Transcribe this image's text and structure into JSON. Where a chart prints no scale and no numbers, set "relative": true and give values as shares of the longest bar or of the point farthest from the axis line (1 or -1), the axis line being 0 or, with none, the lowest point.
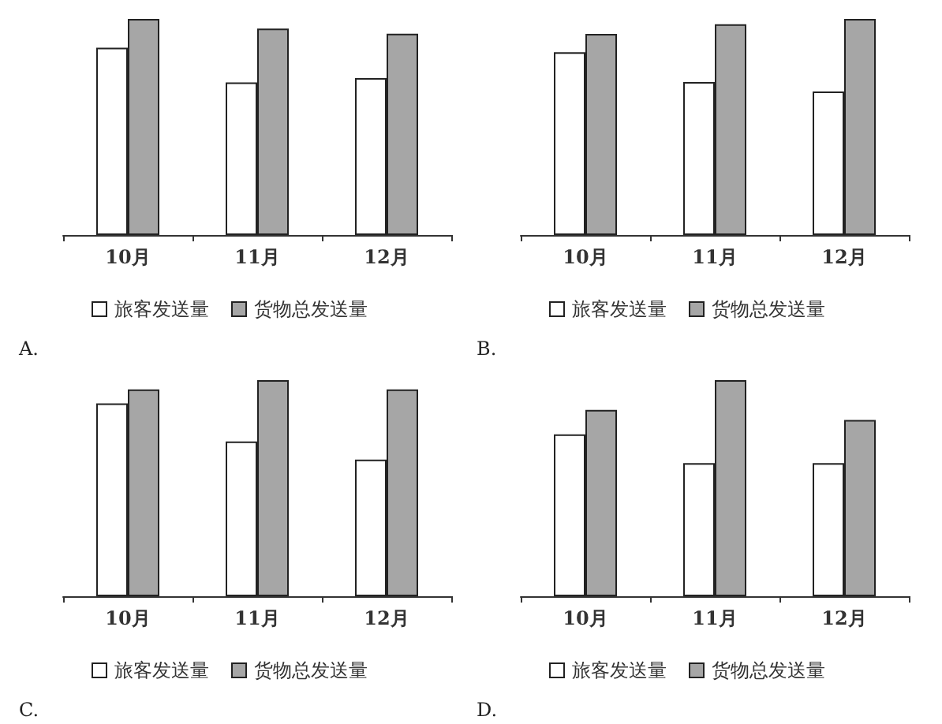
{
  "chart_data": [
    {
      "type": "bar",
      "relative": true,
      "categories": [
        "10月",
        "11月",
        "12月"
      ],
      "legend": "bottom",
      "annotations": [
        "A."
      ],
      "series": [
        {
          "name": "旅客发送量",
          "color": "#ffffff",
          "values": [
            0.867,
            0.706,
            0.726
          ]
        },
        {
          "name": "货物总发送量",
          "color": "#a6a6a6",
          "values": [
            1,
            0.955,
            0.932
          ]
        }
      ]
    },
    {
      "type": "bar",
      "relative": true,
      "categories": [
        "10月",
        "11月",
        "12月"
      ],
      "legend": "bottom",
      "annotations": [
        "B."
      ],
      "series": [
        {
          "name": "旅客发送量",
          "color": "#ffffff",
          "values": [
            0.846,
            0.708,
            0.664
          ]
        },
        {
          "name": "货物总发送量",
          "color": "#a6a6a6",
          "values": [
            0.931,
            0.975,
            1
          ]
        }
      ]
    },
    {
      "type": "bar",
      "relative": true,
      "categories": [
        "10月",
        "11月",
        "12月"
      ],
      "legend": "bottom",
      "annotations": [
        "C."
      ],
      "series": [
        {
          "name": "旅客发送量",
          "color": "#ffffff",
          "values": [
            0.892,
            0.716,
            0.632
          ]
        },
        {
          "name": "货物总发送量",
          "color": "#a6a6a6",
          "values": [
            0.957,
            1,
            0.957
          ]
        }
      ]
    },
    {
      "type": "bar",
      "relative": true,
      "categories": [
        "10月",
        "11月",
        "12月"
      ],
      "legend": "bottom",
      "annotations": [
        "D."
      ],
      "series": [
        {
          "name": "旅客发送量",
          "color": "#ffffff",
          "values": [
            0.749,
            0.616,
            0.616
          ]
        },
        {
          "name": "货物总发送量",
          "color": "#a6a6a6",
          "values": [
            0.862,
            1,
            0.816
          ]
        }
      ]
    }
  ]
}
